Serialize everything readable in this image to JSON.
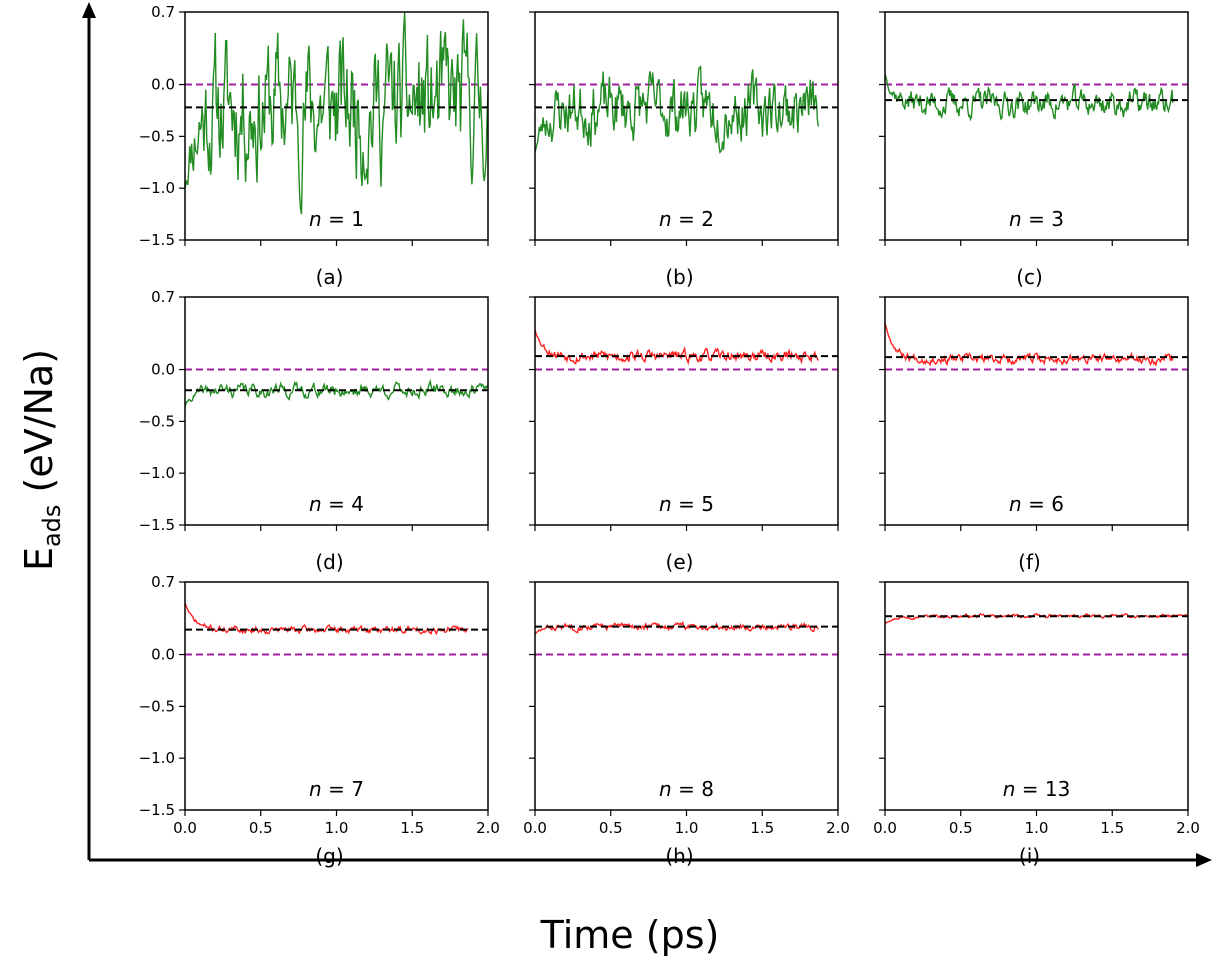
{
  "figure": {
    "xlabel": "Time (ps)",
    "ylabel_main": "E",
    "ylabel_sub": "ads",
    "ylabel_unit": " (eV/Na)",
    "colors": {
      "stable": "#228b22",
      "unstable": "#ff2020",
      "zero_line": "#a020a0",
      "mean_line": "#000000"
    }
  },
  "chart_data": [
    {
      "type": "line",
      "panel": "(a)",
      "n_prefix": "n",
      "n_value": "= 1",
      "color": "stable",
      "mean": -0.22,
      "zero": 0.0,
      "xlim": [
        0,
        2
      ],
      "ylim": [
        -1.5,
        0.7
      ],
      "yticks": [
        "0.7",
        "0.0",
        "−0.5",
        "−1.0",
        "−1.5"
      ],
      "xticks": [],
      "x_end": 2.0,
      "start": -1.0,
      "level": -0.2,
      "amp": 0.62,
      "seed": 11
    },
    {
      "type": "line",
      "panel": "(b)",
      "n_prefix": "n",
      "n_value": "= 2",
      "color": "stable",
      "mean": -0.22,
      "zero": 0.0,
      "xlim": [
        0,
        2
      ],
      "ylim": [
        -1.5,
        0.7
      ],
      "yticks": [],
      "xticks": [],
      "x_end": 1.87,
      "start": -0.65,
      "level": -0.22,
      "amp": 0.28,
      "seed": 23
    },
    {
      "type": "line",
      "panel": "(c)",
      "n_prefix": "n",
      "n_value": "= 3",
      "color": "stable",
      "mean": -0.15,
      "zero": 0.0,
      "xlim": [
        0,
        2
      ],
      "ylim": [
        -1.5,
        0.7
      ],
      "yticks": [],
      "xticks": [],
      "x_end": 1.9,
      "start": 0.1,
      "level": -0.18,
      "amp": 0.12,
      "seed": 37
    },
    {
      "type": "line",
      "panel": "(d)",
      "n_prefix": "n",
      "n_value": "= 4",
      "color": "stable",
      "mean": -0.2,
      "zero": 0.0,
      "xlim": [
        0,
        2
      ],
      "ylim": [
        -1.5,
        0.7
      ],
      "yticks": [
        "0.7",
        "0.0",
        "−0.5",
        "−1.0",
        "−1.5"
      ],
      "xticks": [],
      "x_end": 2.0,
      "start": -0.35,
      "level": -0.2,
      "amp": 0.06,
      "seed": 41
    },
    {
      "type": "line",
      "panel": "(e)",
      "n_prefix": "n",
      "n_value": "= 5",
      "color": "unstable",
      "mean": 0.13,
      "zero": 0.0,
      "xlim": [
        0,
        2
      ],
      "ylim": [
        -1.5,
        0.7
      ],
      "yticks": [],
      "xticks": [],
      "x_end": 1.87,
      "start": 0.38,
      "level": 0.13,
      "amp": 0.05,
      "seed": 53
    },
    {
      "type": "line",
      "panel": "(f)",
      "n_prefix": "n",
      "n_value": "= 6",
      "color": "unstable",
      "mean": 0.12,
      "zero": 0.0,
      "xlim": [
        0,
        2
      ],
      "ylim": [
        -1.5,
        0.7
      ],
      "yticks": [],
      "xticks": [],
      "x_end": 1.9,
      "start": 0.45,
      "level": 0.1,
      "amp": 0.04,
      "seed": 67
    },
    {
      "type": "line",
      "panel": "(g)",
      "n_prefix": "n",
      "n_value": "= 7",
      "color": "unstable",
      "mean": 0.24,
      "zero": 0.0,
      "xlim": [
        0,
        2
      ],
      "ylim": [
        -1.5,
        0.7
      ],
      "yticks": [
        "0.7",
        "0.0",
        "−0.5",
        "−1.0",
        "−1.5"
      ],
      "xticks": [
        "0.0",
        "0.5",
        "1.0",
        "1.5",
        "2.0"
      ],
      "x_end": 1.87,
      "start": 0.5,
      "level": 0.24,
      "amp": 0.03,
      "seed": 71
    },
    {
      "type": "line",
      "panel": "(h)",
      "n_prefix": "n",
      "n_value": "= 8",
      "color": "unstable",
      "mean": 0.27,
      "zero": 0.0,
      "xlim": [
        0,
        2
      ],
      "ylim": [
        -1.5,
        0.7
      ],
      "yticks": [],
      "xticks": [
        "0.0",
        "0.5",
        "1.0",
        "1.5",
        "2.0"
      ],
      "x_end": 1.87,
      "start": 0.2,
      "level": 0.27,
      "amp": 0.03,
      "seed": 83
    },
    {
      "type": "line",
      "panel": "(i)",
      "n_prefix": "n",
      "n_value": "= 13",
      "color": "unstable",
      "mean": 0.37,
      "zero": 0.0,
      "xlim": [
        0,
        2
      ],
      "ylim": [
        -1.5,
        0.7
      ],
      "yticks": [],
      "xticks": [
        "0.0",
        "0.5",
        "1.0",
        "1.5",
        "2.0"
      ],
      "x_end": 2.0,
      "start": 0.3,
      "level": 0.37,
      "amp": 0.015,
      "seed": 97
    }
  ]
}
